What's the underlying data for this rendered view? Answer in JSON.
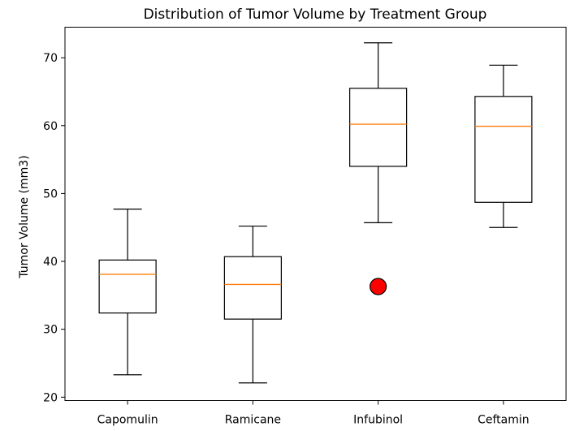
{
  "chart_data": {
    "type": "box",
    "title": "Distribution of Tumor Volume by Treatment Group",
    "xlabel": "",
    "ylabel": "Tumor Volume (mm3)",
    "ylim": [
      19.5,
      74.5
    ],
    "yticks": [
      20,
      30,
      40,
      50,
      60,
      70
    ],
    "grid": false,
    "categories": [
      "Capomulin",
      "Ramicane",
      "Infubinol",
      "Ceftamin"
    ],
    "boxes": [
      {
        "label": "Capomulin",
        "whisker_low": 23.3,
        "q1": 32.4,
        "median": 38.1,
        "q3": 40.2,
        "whisker_high": 47.7,
        "outliers": []
      },
      {
        "label": "Ramicane",
        "whisker_low": 22.1,
        "q1": 31.5,
        "median": 36.6,
        "q3": 40.7,
        "whisker_high": 45.2,
        "outliers": []
      },
      {
        "label": "Infubinol",
        "whisker_low": 45.7,
        "q1": 54.0,
        "median": 60.2,
        "q3": 65.5,
        "whisker_high": 72.2,
        "outliers": [
          36.3
        ]
      },
      {
        "label": "Ceftamin",
        "whisker_low": 45.0,
        "q1": 48.7,
        "median": 59.9,
        "q3": 64.3,
        "whisker_high": 68.9,
        "outliers": []
      }
    ],
    "colors": {
      "box": "#000000",
      "median": "#ff7f0e",
      "outlier_fill": "#ff0000",
      "outlier_edge": "#000000",
      "axes": "#000000"
    }
  }
}
